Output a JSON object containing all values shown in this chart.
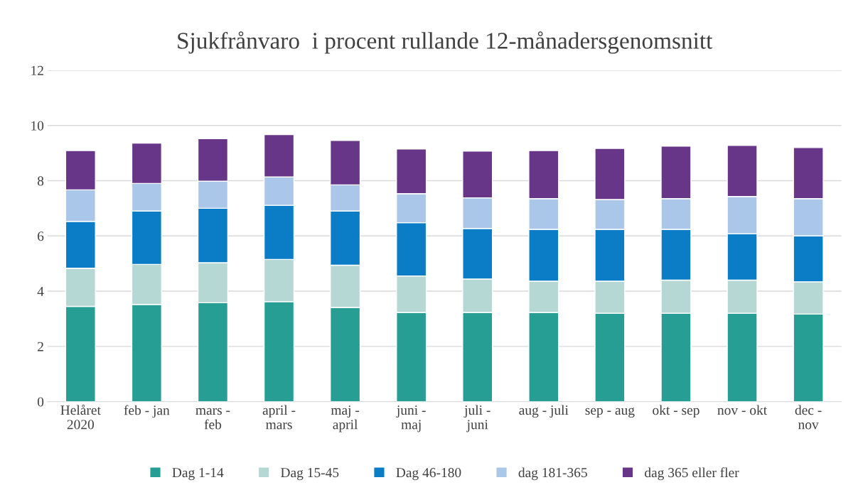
{
  "chart_data": {
    "type": "bar",
    "stacked": true,
    "title": "Sjukfrånvaro  i procent rullande 12-månadersgenomsnitt",
    "categories": [
      "Helåret\n2020",
      "feb - jan",
      "mars -\nfeb",
      "april -\nmars",
      "maj -\napril",
      "juni -\nmaj",
      "juli -\njuni",
      "aug - juli",
      "sep - aug",
      "okt - sep",
      "nov - okt",
      "dec -\nnov"
    ],
    "series": [
      {
        "name": "Dag 1-14",
        "color": "#279e94",
        "values": [
          3.45,
          3.52,
          3.58,
          3.62,
          3.41,
          3.23,
          3.23,
          3.23,
          3.2,
          3.2,
          3.2,
          3.17
        ]
      },
      {
        "name": "Dag 15-45",
        "color": "#b6d8d4",
        "values": [
          1.38,
          1.45,
          1.45,
          1.53,
          1.53,
          1.32,
          1.21,
          1.13,
          1.16,
          1.2,
          1.2,
          1.17
        ]
      },
      {
        "name": "Dag 46-180",
        "color": "#0b7dc6",
        "values": [
          1.7,
          1.93,
          1.97,
          1.96,
          1.96,
          1.93,
          1.83,
          1.88,
          1.88,
          1.84,
          1.68,
          1.66
        ]
      },
      {
        "name": "dag 181-365",
        "color": "#aac7ea",
        "values": [
          1.14,
          1.0,
          0.98,
          1.03,
          0.95,
          1.05,
          1.11,
          1.11,
          1.08,
          1.11,
          1.35,
          1.35
        ]
      },
      {
        "name": "dag 365 eller fler",
        "color": "#683689",
        "values": [
          1.42,
          1.46,
          1.54,
          1.53,
          1.61,
          1.62,
          1.69,
          1.74,
          1.85,
          1.9,
          1.85,
          1.85
        ]
      }
    ],
    "ylim": [
      0,
      12
    ],
    "yticks": [
      0,
      2,
      4,
      6,
      8,
      10,
      12
    ],
    "grid": "y",
    "legend": "bottom"
  }
}
